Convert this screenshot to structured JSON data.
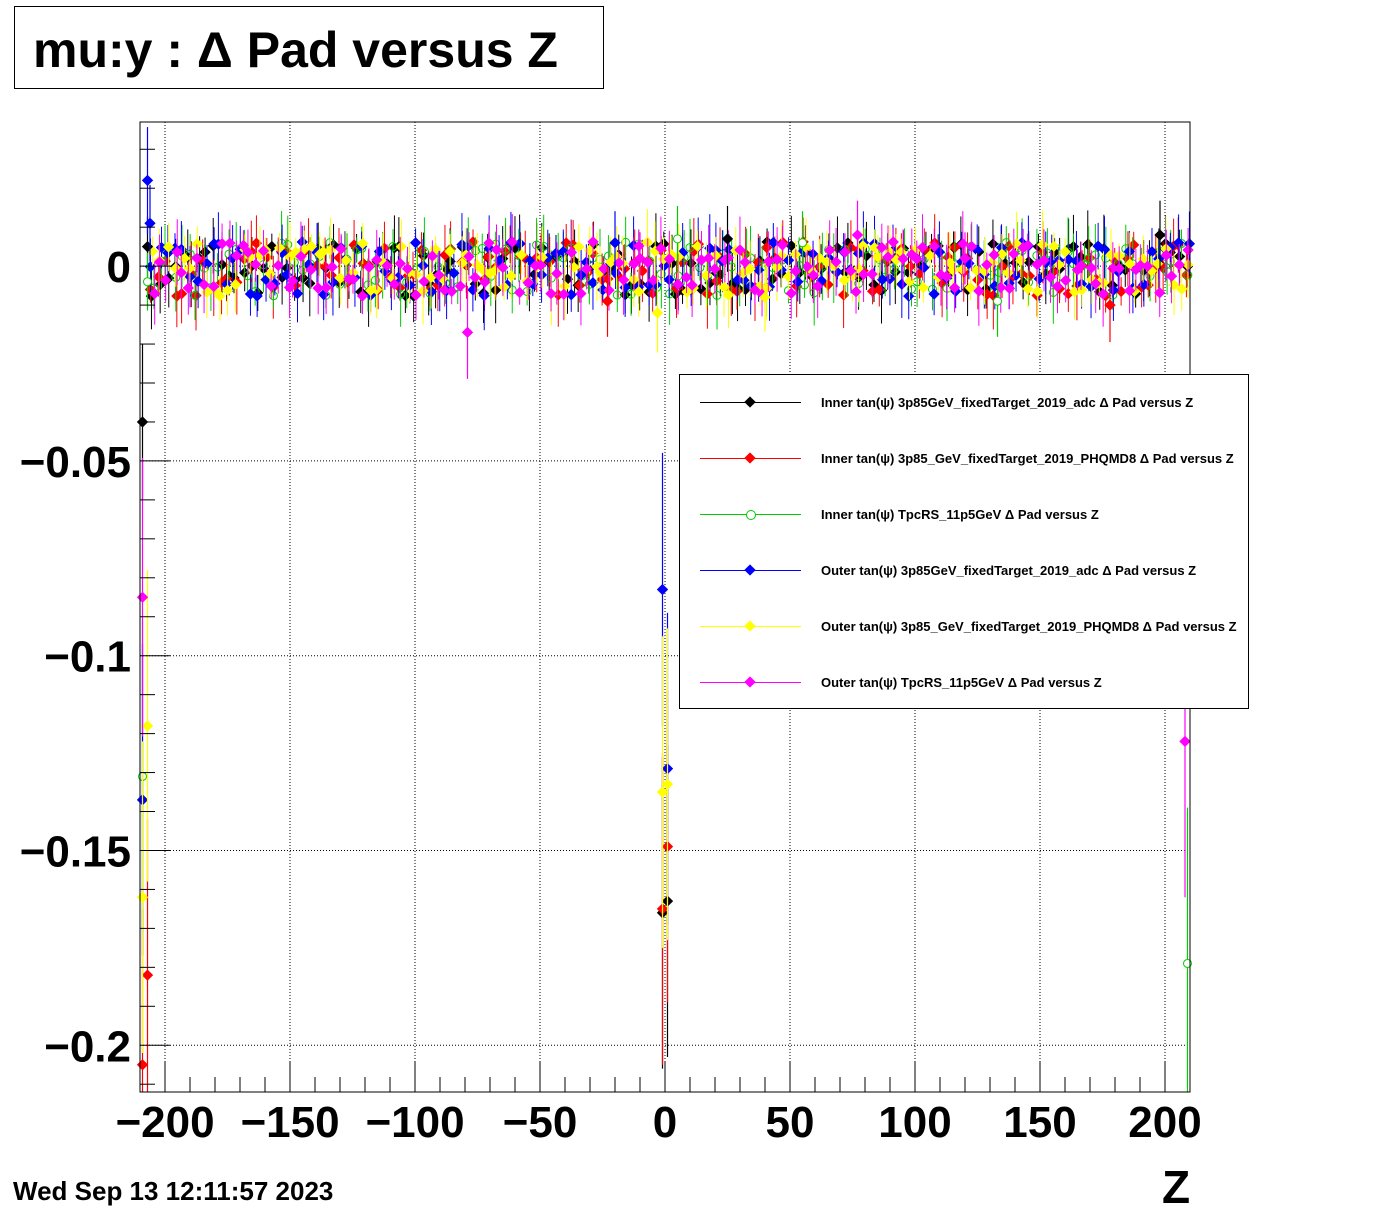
{
  "title": "mu:y : Δ Pad versus Z",
  "datestamp": "Wed Sep 13 12:11:57 2023",
  "chart_data": {
    "type": "scatter",
    "xlabel": "Z",
    "ylabel": "",
    "xlim": [
      -210,
      210
    ],
    "ylim": [
      -0.212,
      0.037
    ],
    "x_ticks": [
      "−200",
      "−150",
      "−100",
      "−50",
      "0",
      "50",
      "100",
      "150",
      "200"
    ],
    "x_tick_values": [
      -200,
      -150,
      -100,
      -50,
      0,
      50,
      100,
      150,
      200
    ],
    "y_ticks": [
      "0",
      "−0.05",
      "−0.1",
      "−0.15",
      "−0.2"
    ],
    "y_tick_values": [
      0,
      -0.05,
      -0.1,
      -0.15,
      -0.2
    ],
    "grid": true,
    "legend_position": "middle-right",
    "series": [
      {
        "name": "Inner tan(ψ) 3p85GeV_fixedTarget_2019_adc Δ Pad versus Z",
        "color": "#000000",
        "marker": "filled-diamond",
        "points": [
          [
            -209,
            -0.04
          ],
          [
            -207,
            0.005
          ],
          [
            -1,
            -0.166
          ],
          [
            1,
            -0.163
          ],
          [
            25,
            0.007
          ],
          [
            198,
            0.008
          ]
        ]
      },
      {
        "name": "Inner tan(ψ) 3p85_GeV_fixedTarget_2019_PHQMD8 Δ Pad versus Z",
        "color": "#ff0000",
        "marker": "filled-diamond",
        "points": [
          [
            -209,
            -0.205
          ],
          [
            -207,
            -0.182
          ],
          [
            -1,
            -0.165
          ],
          [
            1,
            -0.149
          ],
          [
            -23,
            -0.009
          ],
          [
            178,
            -0.01
          ]
        ]
      },
      {
        "name": "Inner tan(ψ) TpcRS_11p5GeV Δ Pad versus Z",
        "color": "#00cc00",
        "marker": "open-circle",
        "points": [
          [
            -209,
            -0.131
          ],
          [
            -207,
            -0.004
          ],
          [
            209,
            -0.179
          ],
          [
            133,
            -0.009
          ],
          [
            5,
            0.007
          ],
          [
            55,
            0.006
          ]
        ]
      },
      {
        "name": "Outer tan(ψ) 3p85GeV_fixedTarget_2019_adc Δ Pad versus Z",
        "color": "#0000ff",
        "marker": "filled-diamond",
        "points": [
          [
            -209,
            -0.137
          ],
          [
            -207,
            0.022
          ],
          [
            -206,
            0.011
          ],
          [
            -1,
            -0.083
          ],
          [
            1,
            -0.129
          ],
          [
            -20,
            0.006
          ]
        ]
      },
      {
        "name": "Outer tan(ψ) 3p85_GeV_fixedTarget_2019_PHQMD8 Δ Pad versus Z",
        "color": "#ffff00",
        "marker": "filled-diamond",
        "points": [
          [
            -209,
            -0.162
          ],
          [
            -207,
            -0.118
          ],
          [
            -1,
            -0.135
          ],
          [
            1,
            -0.133
          ],
          [
            -3,
            -0.012
          ],
          [
            40,
            -0.008
          ]
        ]
      },
      {
        "name": "Outer tan(ψ) TpcRS_11p5GeV Δ Pad versus Z",
        "color": "#ff00ff",
        "marker": "filled-diamond",
        "points": [
          [
            -209,
            -0.085
          ],
          [
            -79,
            -0.017
          ],
          [
            208,
            -0.122
          ],
          [
            77,
            0.008
          ],
          [
            -10,
            0.002
          ],
          [
            120,
            0.002
          ]
        ]
      }
    ]
  }
}
